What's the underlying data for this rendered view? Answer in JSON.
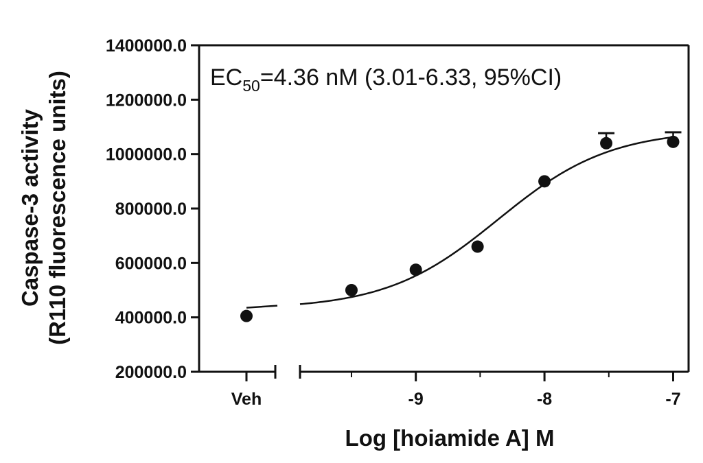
{
  "chart_data": {
    "type": "scatter",
    "title": "",
    "ylabel_line1": "Caspase-3 activity",
    "ylabel_line2": "(R110 fluorescence units)",
    "xlabel": "Log [hoiamide A] M",
    "annotation": {
      "prefix": "EC",
      "subscript": "50",
      "text": "=4.36 nM (3.01-6.33, 95%CI)"
    },
    "ylim": [
      200000,
      1400000
    ],
    "yticks": [
      {
        "value": 200000,
        "label": "200000.0"
      },
      {
        "value": 400000,
        "label": "400000.0"
      },
      {
        "value": 600000,
        "label": "600000.0"
      },
      {
        "value": 800000,
        "label": "800000.0"
      },
      {
        "value": 1000000,
        "label": "1000000.0"
      },
      {
        "value": 1200000,
        "label": "1200000.0"
      },
      {
        "value": 1400000,
        "label": "1400000.0"
      }
    ],
    "xlim": [
      -9.9,
      -6.88
    ],
    "xticks": [
      {
        "value": -9,
        "label": "-9"
      },
      {
        "value": -8,
        "label": "-8"
      },
      {
        "value": -7,
        "label": "-7"
      }
    ],
    "vehicle": {
      "label": "Veh",
      "y": 405000
    },
    "points": [
      {
        "x": -9.5,
        "y": 500000,
        "err": 0
      },
      {
        "x": -9.0,
        "y": 575000,
        "err": 0
      },
      {
        "x": -8.52,
        "y": 660000,
        "err": 0
      },
      {
        "x": -8.0,
        "y": 900000,
        "err": 0
      },
      {
        "x": -7.52,
        "y": 1040000,
        "err": 37000
      },
      {
        "x": -7.0,
        "y": 1045000,
        "err": 35000
      }
    ],
    "fit": {
      "model": "sigmoidal dose-response",
      "bottom": 430000,
      "top": 1090000,
      "logEC50": -8.36,
      "hill": 1.0
    },
    "grid": false,
    "legend": "none"
  }
}
